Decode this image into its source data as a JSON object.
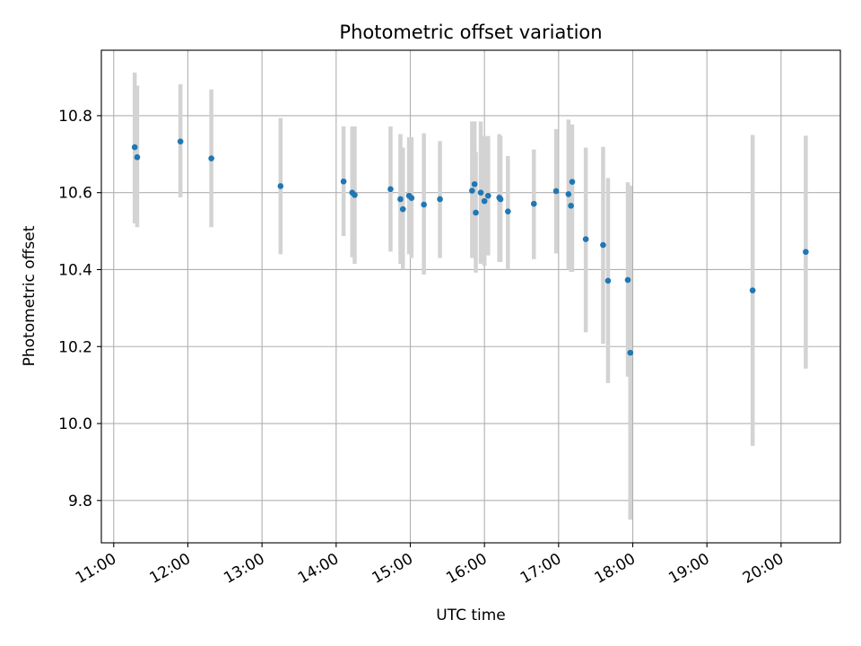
{
  "chart_data": {
    "type": "scatter",
    "title": "Photometric offset variation",
    "xlabel": "UTC time",
    "ylabel": "Photometric offset",
    "x_unit": "UTC time (HH:MM)",
    "xlim": [
      "10:50",
      "20:48"
    ],
    "ylim": [
      9.69,
      10.97
    ],
    "x_ticks": [
      "11:00",
      "12:00",
      "13:00",
      "14:00",
      "15:00",
      "16:00",
      "17:00",
      "18:00",
      "19:00",
      "20:00"
    ],
    "y_ticks": [
      9.8,
      10.0,
      10.2,
      10.4,
      10.6,
      10.8
    ],
    "y_tick_labels": [
      "9.8",
      "10.0",
      "10.2",
      "10.4",
      "10.6",
      "10.8"
    ],
    "grid": true,
    "point_color": "#1f77b4",
    "errorbar_color": "#d3d3d3",
    "points": [
      {
        "x": "11:17",
        "y": 10.718,
        "low": 10.52,
        "high": 10.912
      },
      {
        "x": "11:19",
        "y": 10.692,
        "low": 10.51,
        "high": 10.878
      },
      {
        "x": "11:54",
        "y": 10.733,
        "low": 10.588,
        "high": 10.882
      },
      {
        "x": "12:19",
        "y": 10.689,
        "low": 10.51,
        "high": 10.868
      },
      {
        "x": "13:15",
        "y": 10.617,
        "low": 10.44,
        "high": 10.794
      },
      {
        "x": "14:06",
        "y": 10.629,
        "low": 10.487,
        "high": 10.772
      },
      {
        "x": "14:13",
        "y": 10.6,
        "low": 10.432,
        "high": 10.772
      },
      {
        "x": "14:15",
        "y": 10.594,
        "low": 10.415,
        "high": 10.772
      },
      {
        "x": "14:44",
        "y": 10.609,
        "low": 10.447,
        "high": 10.772
      },
      {
        "x": "14:52",
        "y": 10.583,
        "low": 10.415,
        "high": 10.752
      },
      {
        "x": "14:54",
        "y": 10.557,
        "low": 10.4,
        "high": 10.717
      },
      {
        "x": "14:59",
        "y": 10.592,
        "low": 10.44,
        "high": 10.744
      },
      {
        "x": "15:01",
        "y": 10.586,
        "low": 10.43,
        "high": 10.744
      },
      {
        "x": "15:11",
        "y": 10.569,
        "low": 10.387,
        "high": 10.754
      },
      {
        "x": "15:24",
        "y": 10.583,
        "low": 10.43,
        "high": 10.734
      },
      {
        "x": "15:50",
        "y": 10.605,
        "low": 10.43,
        "high": 10.785
      },
      {
        "x": "15:52",
        "y": 10.622,
        "low": 10.43,
        "high": 10.785
      },
      {
        "x": "15:53",
        "y": 10.548,
        "low": 10.392,
        "high": 10.705
      },
      {
        "x": "15:57",
        "y": 10.6,
        "low": 10.415,
        "high": 10.785
      },
      {
        "x": "16:00",
        "y": 10.578,
        "low": 10.41,
        "high": 10.747
      },
      {
        "x": "16:03",
        "y": 10.592,
        "low": 10.437,
        "high": 10.747
      },
      {
        "x": "16:12",
        "y": 10.587,
        "low": 10.42,
        "high": 10.752
      },
      {
        "x": "16:13",
        "y": 10.583,
        "low": 10.42,
        "high": 10.747
      },
      {
        "x": "16:19",
        "y": 10.551,
        "low": 10.4,
        "high": 10.695
      },
      {
        "x": "16:40",
        "y": 10.571,
        "low": 10.427,
        "high": 10.712
      },
      {
        "x": "16:58",
        "y": 10.604,
        "low": 10.442,
        "high": 10.765
      },
      {
        "x": "17:08",
        "y": 10.596,
        "low": 10.4,
        "high": 10.79
      },
      {
        "x": "17:10",
        "y": 10.566,
        "low": 10.394,
        "high": 10.777
      },
      {
        "x": "17:11",
        "y": 10.628,
        "low": 10.394,
        "high": 10.777
      },
      {
        "x": "17:22",
        "y": 10.479,
        "low": 10.237,
        "high": 10.717
      },
      {
        "x": "17:36",
        "y": 10.464,
        "low": 10.207,
        "high": 10.719
      },
      {
        "x": "17:40",
        "y": 10.371,
        "low": 10.105,
        "high": 10.638
      },
      {
        "x": "17:56",
        "y": 10.373,
        "low": 10.122,
        "high": 10.627
      },
      {
        "x": "17:58",
        "y": 10.184,
        "low": 9.75,
        "high": 10.618
      },
      {
        "x": "19:37",
        "y": 10.346,
        "low": 9.942,
        "high": 10.75
      },
      {
        "x": "20:20",
        "y": 10.446,
        "low": 10.143,
        "high": 10.748
      }
    ]
  }
}
